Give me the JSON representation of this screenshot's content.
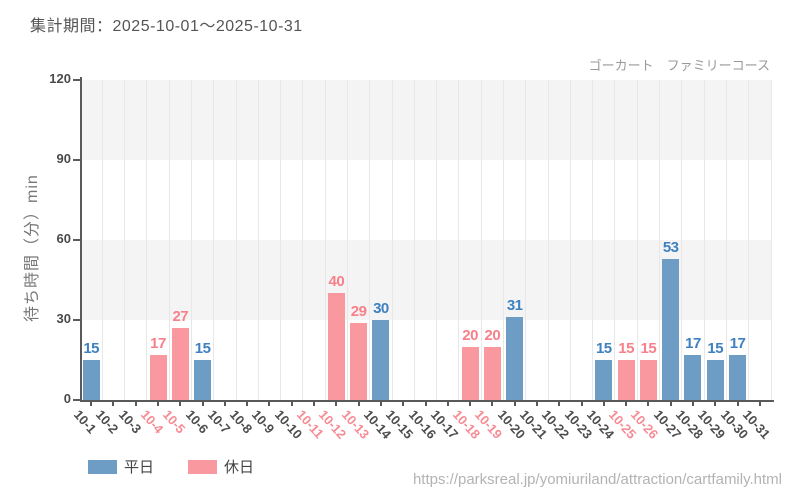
{
  "page": {
    "report_period_label": "集計期間：2025-10-01～2025-10-31",
    "source_url": "https://parksreal.jp/yomiuriland/attraction/cartfamily.html"
  },
  "colors": {
    "weekday_bar": "#6d9dc5",
    "weekday_value_label": "#3e80c0",
    "holiday_bar": "#f9989e",
    "holiday_value_label": "#f8808a",
    "x_label_weekday": "#4d4d4d",
    "x_label_holiday": "#f78b94",
    "band_gray": "#f4f4f4",
    "gridline": "#e7e7e7",
    "axis": "#5a5a5a"
  },
  "chart_data": {
    "type": "bar",
    "title": "ゴーカート　ファミリーコース",
    "ylabel": "待ち時間（分）min",
    "xlabel": "",
    "ylim": [
      0,
      120
    ],
    "yticks": [
      0,
      30,
      60,
      90,
      120
    ],
    "grid": true,
    "band_ranges_gray": [
      [
        30,
        60
      ],
      [
        90,
        120
      ]
    ],
    "legend_position": "bottom-left",
    "categories": [
      "10-1",
      "10-2",
      "10-3",
      "10-4",
      "10-5",
      "10-6",
      "10-7",
      "10-8",
      "10-9",
      "10-10",
      "10-11",
      "10-12",
      "10-13",
      "10-14",
      "10-15",
      "10-16",
      "10-17",
      "10-18",
      "10-19",
      "10-20",
      "10-21",
      "10-22",
      "10-23",
      "10-24",
      "10-25",
      "10-26",
      "10-27",
      "10-28",
      "10-29",
      "10-30",
      "10-31"
    ],
    "holiday_label_indices": [
      3,
      4,
      10,
      11,
      12,
      17,
      18,
      24,
      25
    ],
    "series": [
      {
        "name": "平日",
        "key": "weekday",
        "values": [
          15,
          null,
          null,
          null,
          null,
          15,
          null,
          null,
          null,
          null,
          null,
          null,
          null,
          30,
          null,
          null,
          null,
          null,
          null,
          31,
          null,
          null,
          null,
          15,
          null,
          null,
          53,
          17,
          15,
          17,
          null
        ]
      },
      {
        "name": "休日",
        "key": "holiday",
        "values": [
          null,
          null,
          null,
          17,
          27,
          null,
          null,
          null,
          null,
          null,
          null,
          40,
          29,
          null,
          null,
          null,
          null,
          20,
          20,
          null,
          null,
          null,
          null,
          null,
          15,
          15,
          null,
          null,
          null,
          null,
          null
        ]
      }
    ]
  }
}
